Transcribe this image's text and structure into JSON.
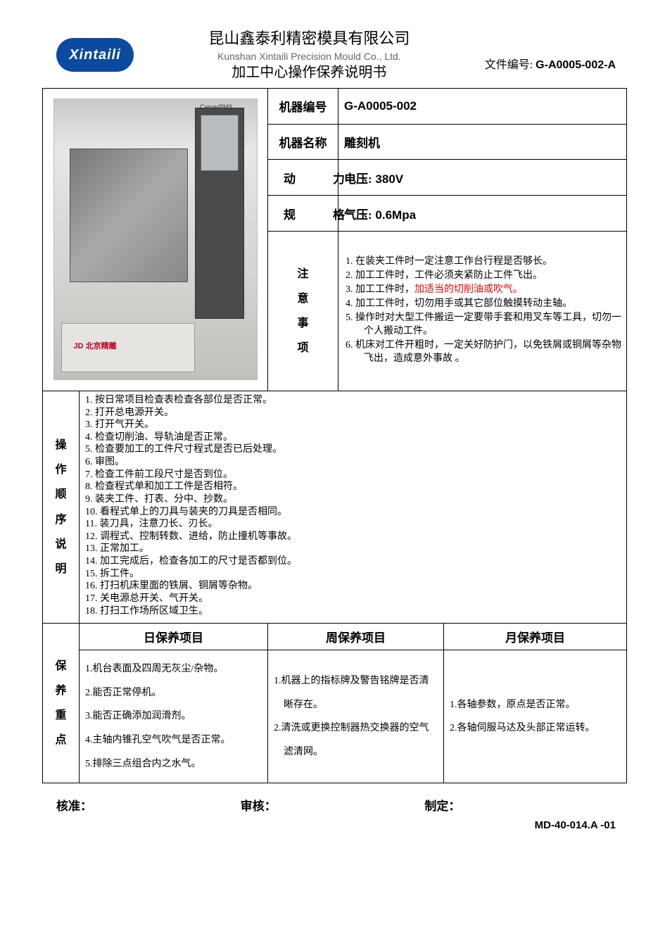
{
  "colors": {
    "logo_bg": "#0b4aa0",
    "border": "#000000",
    "highlight": "#ff0000",
    "subtext": "#666666"
  },
  "header": {
    "logo_text": "Xintaili",
    "company_cn": "昆山鑫泰利精密模具有限公司",
    "company_en": "Kunshan Xintaili Precision Mould Co., Ltd.",
    "subtitle": "加工中心操作保养说明书",
    "docno_label": "文件编号:",
    "docno_code": "G-A0005-002-A"
  },
  "machine": {
    "no_label": "机器编号",
    "no_value": "G-A0005-002",
    "name_label": "机器名称",
    "name_value": "雕刻机",
    "power_label": "动　力",
    "spec_label": "规　格",
    "voltage_label": "电压:",
    "voltage_value": "380V",
    "pressure_label": "气压:",
    "pressure_value": "0.6Mpa"
  },
  "notes": {
    "heading": "注\n意\n事\n项",
    "items": [
      {
        "n": "1.",
        "t": "在装夹工件时一定注意工作台行程是否够长。"
      },
      {
        "n": "2.",
        "t": "加工工件时，工件必须夹紧防止工件飞出。"
      },
      {
        "n": "3.",
        "t": "加工工件时，",
        "hl": "加适当的切削油或吹气。"
      },
      {
        "n": "4.",
        "t": "加工工件时，切勿用手或其它部位触摸转动主轴。"
      },
      {
        "n": "5.",
        "t": "操作时对大型工件搬运一定要带手套和用叉车等工具，切勿一个人搬动工件。"
      },
      {
        "n": "6.",
        "t": "机床对工件开粗时，一定关好防护门，以免铁屑或铜屑等杂物飞出，造成意外事故 。"
      }
    ]
  },
  "procedure": {
    "heading": "操\n作\n顺\n序\n说\n明",
    "items": [
      "按日常项目检查表检查各部位是否正常。",
      "打开总电源开关。",
      "打开气开关。",
      "检查切削油、导轨油是否正常。",
      "检查要加工的工件尺寸程式是否已后处理。",
      "审图。",
      "检查工件前工段尺寸是否到位。",
      "检查程式单和加工工件是否相符。",
      "装夹工件、打表、分中、抄数。",
      "看程式单上的刀具与装夹的刀具是否相同。",
      "装刀具，注意刀长、刃长。",
      "调程式、控制转数、进给，防止撞机等事故。",
      "正常加工。",
      "加工完成后，检查各加工的尺寸是否都到位。",
      "拆工件。",
      "打扫机床里面的铁屑、铜屑等杂物。",
      "关电源总开关、气开关。",
      "打扫工作场所区域卫生。"
    ]
  },
  "maintenance": {
    "heading": "保\n养\n重\n点",
    "col_daily": "日保养项目",
    "col_weekly": "周保养项目",
    "col_monthly": "月保养项目",
    "daily": [
      "机台表面及四周无灰尘/杂物。",
      "能否正常停机。",
      "能否正确添加润滑剂。",
      "主轴内锥孔空气吹气是否正常。",
      "排除三点组合内之水气。"
    ],
    "weekly": [
      "机器上的指标牌及警告铭牌是否清晰存在。",
      "清洗或更换控制器热交换器的空气滤清网。"
    ],
    "monthly": [
      "各轴参数，原点是否正常。",
      "各轴伺服马达及头部正常运转。"
    ]
  },
  "signoff": {
    "approve": "核准：",
    "review": "审核：",
    "prepare": "制定："
  },
  "footer_code": "MD-40-014.A -01"
}
